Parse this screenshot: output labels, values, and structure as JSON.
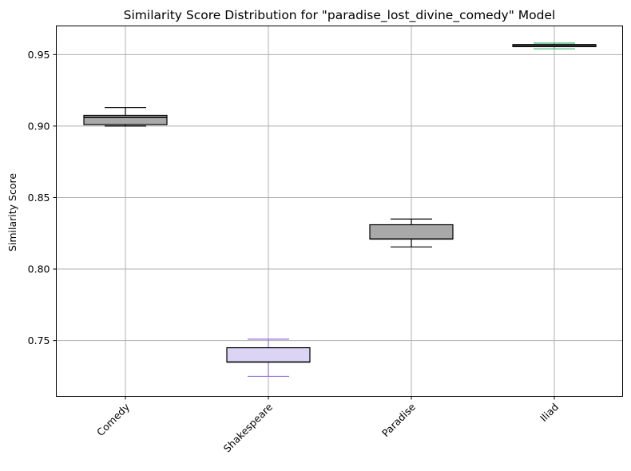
{
  "chart_data": {
    "type": "box",
    "title": "Similarity Score Distribution for \"paradise_lost_divine_comedy\" Model",
    "xlabel": "",
    "ylabel": "Similarity Score",
    "ylim": [
      0.711,
      0.97
    ],
    "yticks": [
      0.75,
      0.8,
      0.85,
      0.9,
      0.95
    ],
    "ytick_labels": [
      "0.75",
      "0.80",
      "0.85",
      "0.90",
      "0.95"
    ],
    "grid": true,
    "categories": [
      "Comedy",
      "Shakespeare",
      "Paradise",
      "Iliad"
    ],
    "boxes": [
      {
        "category": "Comedy",
        "whisker_low": 0.9,
        "q1": 0.901,
        "median": 0.906,
        "q3": 0.9075,
        "whisker_high": 0.913,
        "fill": "#a9a9a9",
        "edge": "#000000",
        "line": "#000000"
      },
      {
        "category": "Shakespeare",
        "whisker_low": 0.725,
        "q1": 0.735,
        "median": 0.735,
        "q3": 0.745,
        "whisker_high": 0.751,
        "fill": "#dcd4f5",
        "edge": "#000000",
        "line": "#9370db"
      },
      {
        "category": "Paradise",
        "whisker_low": 0.8155,
        "q1": 0.821,
        "median": 0.821,
        "q3": 0.831,
        "whisker_high": 0.835,
        "fill": "#a9a9a9",
        "edge": "#000000",
        "line": "#000000"
      },
      {
        "category": "Iliad",
        "whisker_low": 0.954,
        "q1": 0.9555,
        "median": 0.9565,
        "q3": 0.957,
        "whisker_high": 0.958,
        "fill": "#a9a9a9",
        "edge": "#000000",
        "line": "#3cb371"
      }
    ]
  }
}
